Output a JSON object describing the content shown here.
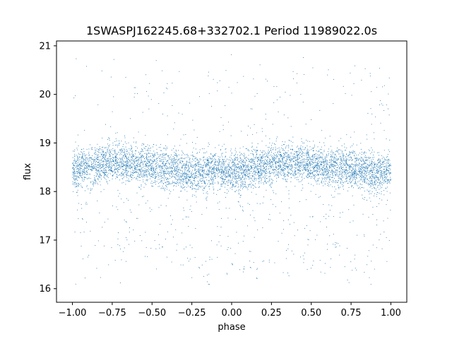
{
  "chart_data": {
    "type": "scatter",
    "title": "1SWASPJ162245.68+332702.1 Period 11989022.0s",
    "xlabel": "phase",
    "ylabel": "flux",
    "xlim": [
      -1.1,
      1.1
    ],
    "ylim": [
      15.72,
      21.1
    ],
    "x_ticks": [
      -1.0,
      -0.75,
      -0.5,
      -0.25,
      0.0,
      0.25,
      0.5,
      0.75,
      1.0
    ],
    "x_tick_labels": [
      "−1.00",
      "−0.75",
      "−0.50",
      "−0.25",
      "0.00",
      "0.25",
      "0.50",
      "0.75",
      "1.00"
    ],
    "y_ticks": [
      16,
      17,
      18,
      19,
      20,
      21
    ],
    "y_tick_labels": [
      "16",
      "17",
      "18",
      "19",
      "20",
      "21"
    ],
    "grid": false,
    "legend": "none",
    "marker_color": "#1f77b4",
    "series": [
      {
        "x": [
          -1.0,
          -0.95,
          -0.9,
          -0.85,
          -0.8,
          -0.75,
          -0.7,
          -0.65,
          -0.6,
          -0.55,
          -0.5,
          -0.45,
          -0.4,
          -0.35,
          -0.3,
          -0.25,
          -0.2,
          -0.15,
          -0.1,
          -0.05,
          0.0,
          0.05,
          0.1,
          0.15,
          0.2,
          0.25,
          0.3,
          0.35,
          0.4,
          0.45,
          0.5,
          0.55,
          0.6,
          0.65,
          0.7,
          0.75,
          0.8,
          0.85,
          0.9,
          0.95,
          1.0
        ],
        "y_median": [
          18.4,
          18.5,
          18.5,
          18.55,
          18.6,
          18.6,
          18.6,
          18.55,
          18.55,
          18.55,
          18.5,
          18.5,
          18.45,
          18.45,
          18.4,
          18.4,
          18.4,
          18.45,
          18.45,
          18.45,
          18.4,
          18.4,
          18.45,
          18.5,
          18.5,
          18.55,
          18.6,
          18.6,
          18.6,
          18.6,
          18.55,
          18.55,
          18.5,
          18.5,
          18.5,
          18.45,
          18.45,
          18.4,
          18.4,
          18.4,
          18.4
        ],
        "y_min": [
          16.0,
          16.2,
          16.2,
          16.1,
          16.2,
          16.0,
          16.1,
          16.3,
          16.1,
          16.0,
          16.2,
          16.3,
          16.2,
          16.3,
          16.5,
          16.2,
          16.2,
          16.0,
          16.3,
          16.2,
          16.4,
          16.2,
          16.3,
          16.0,
          16.3,
          16.3,
          16.4,
          16.2,
          16.3,
          16.4,
          16.3,
          16.2,
          16.2,
          16.5,
          16.2,
          16.1,
          16.0,
          16.1,
          16.0,
          16.5,
          16.6
        ],
        "y_max": [
          20.9,
          20.8,
          20.8,
          20.6,
          20.9,
          20.8,
          20.6,
          20.9,
          20.6,
          20.4,
          20.7,
          20.8,
          20.6,
          20.5,
          20.9,
          20.5,
          20.4,
          20.6,
          20.9,
          20.6,
          20.9,
          20.6,
          20.4,
          20.8,
          20.6,
          20.4,
          20.8,
          20.6,
          20.6,
          20.9,
          20.8,
          20.6,
          20.5,
          20.9,
          20.4,
          20.6,
          20.7,
          20.5,
          20.9,
          20.8,
          20.5
        ]
      }
    ]
  }
}
